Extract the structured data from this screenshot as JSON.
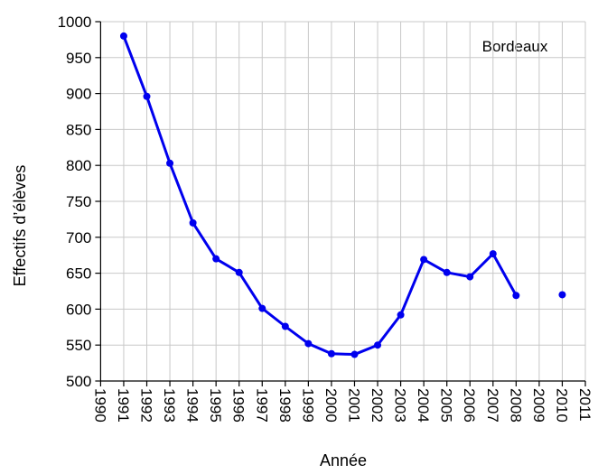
{
  "chart_data": {
    "type": "line",
    "annotation": "Bordeaux",
    "xlabel": "Année",
    "ylabel": "Effectifs d’élèves",
    "x": [
      1991,
      1992,
      1993,
      1994,
      1995,
      1996,
      1997,
      1998,
      1999,
      2000,
      2001,
      2002,
      2003,
      2004,
      2005,
      2006,
      2007,
      2008,
      2009,
      2010
    ],
    "series": [
      {
        "name": "Bordeaux",
        "color": "#0000ee",
        "values": [
          980,
          896,
          803,
          720,
          670,
          651,
          601,
          576,
          552,
          538,
          537,
          550,
          592,
          669,
          651,
          645,
          677,
          619,
          null,
          620
        ]
      }
    ],
    "xlim": [
      1990,
      2011
    ],
    "xticks": [
      1990,
      1991,
      1992,
      1993,
      1994,
      1995,
      1996,
      1997,
      1998,
      1999,
      2000,
      2001,
      2002,
      2003,
      2004,
      2005,
      2006,
      2007,
      2008,
      2009,
      2010,
      2011
    ],
    "ylim": [
      500,
      1000
    ],
    "yticks": [
      500,
      550,
      600,
      650,
      700,
      750,
      800,
      850,
      900,
      950,
      1000
    ],
    "grid": true
  }
}
